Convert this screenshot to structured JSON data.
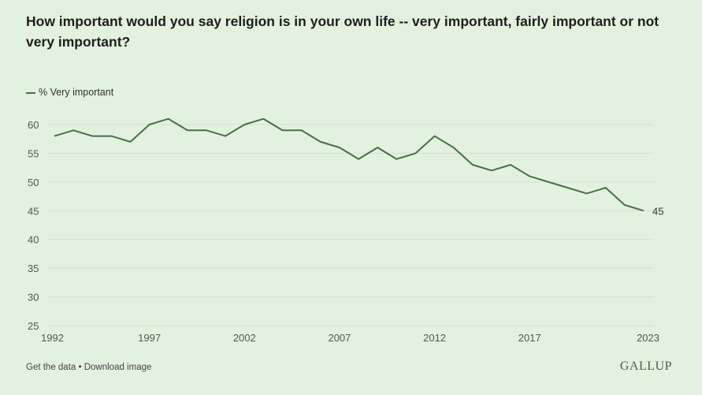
{
  "chart_data": {
    "type": "line",
    "title": "How important would you say religion is in your own life -- very important, fairly important or not very important?",
    "xlabel": "",
    "ylabel": "",
    "ylim": [
      25,
      60
    ],
    "yticks": [
      25,
      30,
      35,
      40,
      45,
      50,
      55,
      60
    ],
    "xticks": [
      1992,
      1997,
      2002,
      2007,
      2012,
      2017,
      2023
    ],
    "grid": true,
    "legend": "top-left",
    "x": [
      1992,
      1993,
      1994,
      1995,
      1996,
      1997,
      1998,
      1999,
      2000,
      2001,
      2002,
      2003,
      2004,
      2005,
      2006,
      2007,
      2008,
      2009,
      2010,
      2011,
      2012,
      2013,
      2014,
      2015,
      2016,
      2017,
      2018,
      2019,
      2020,
      2021,
      2022,
      2023
    ],
    "series": [
      {
        "name": "% Very important",
        "color": "#4a6e4e",
        "values": [
          58,
          59,
          58,
          58,
          57,
          60,
          61,
          59,
          59,
          58,
          60,
          61,
          59,
          59,
          57,
          56,
          54,
          56,
          54,
          55,
          58,
          56,
          53,
          52,
          53,
          51,
          50,
          49,
          48,
          49,
          46,
          45
        ]
      }
    ],
    "end_label": "45"
  },
  "legend_label": "% Very important",
  "footer": {
    "get_data": "Get the data",
    "separator": " • ",
    "download": "Download image"
  },
  "logo": "GALLUP"
}
